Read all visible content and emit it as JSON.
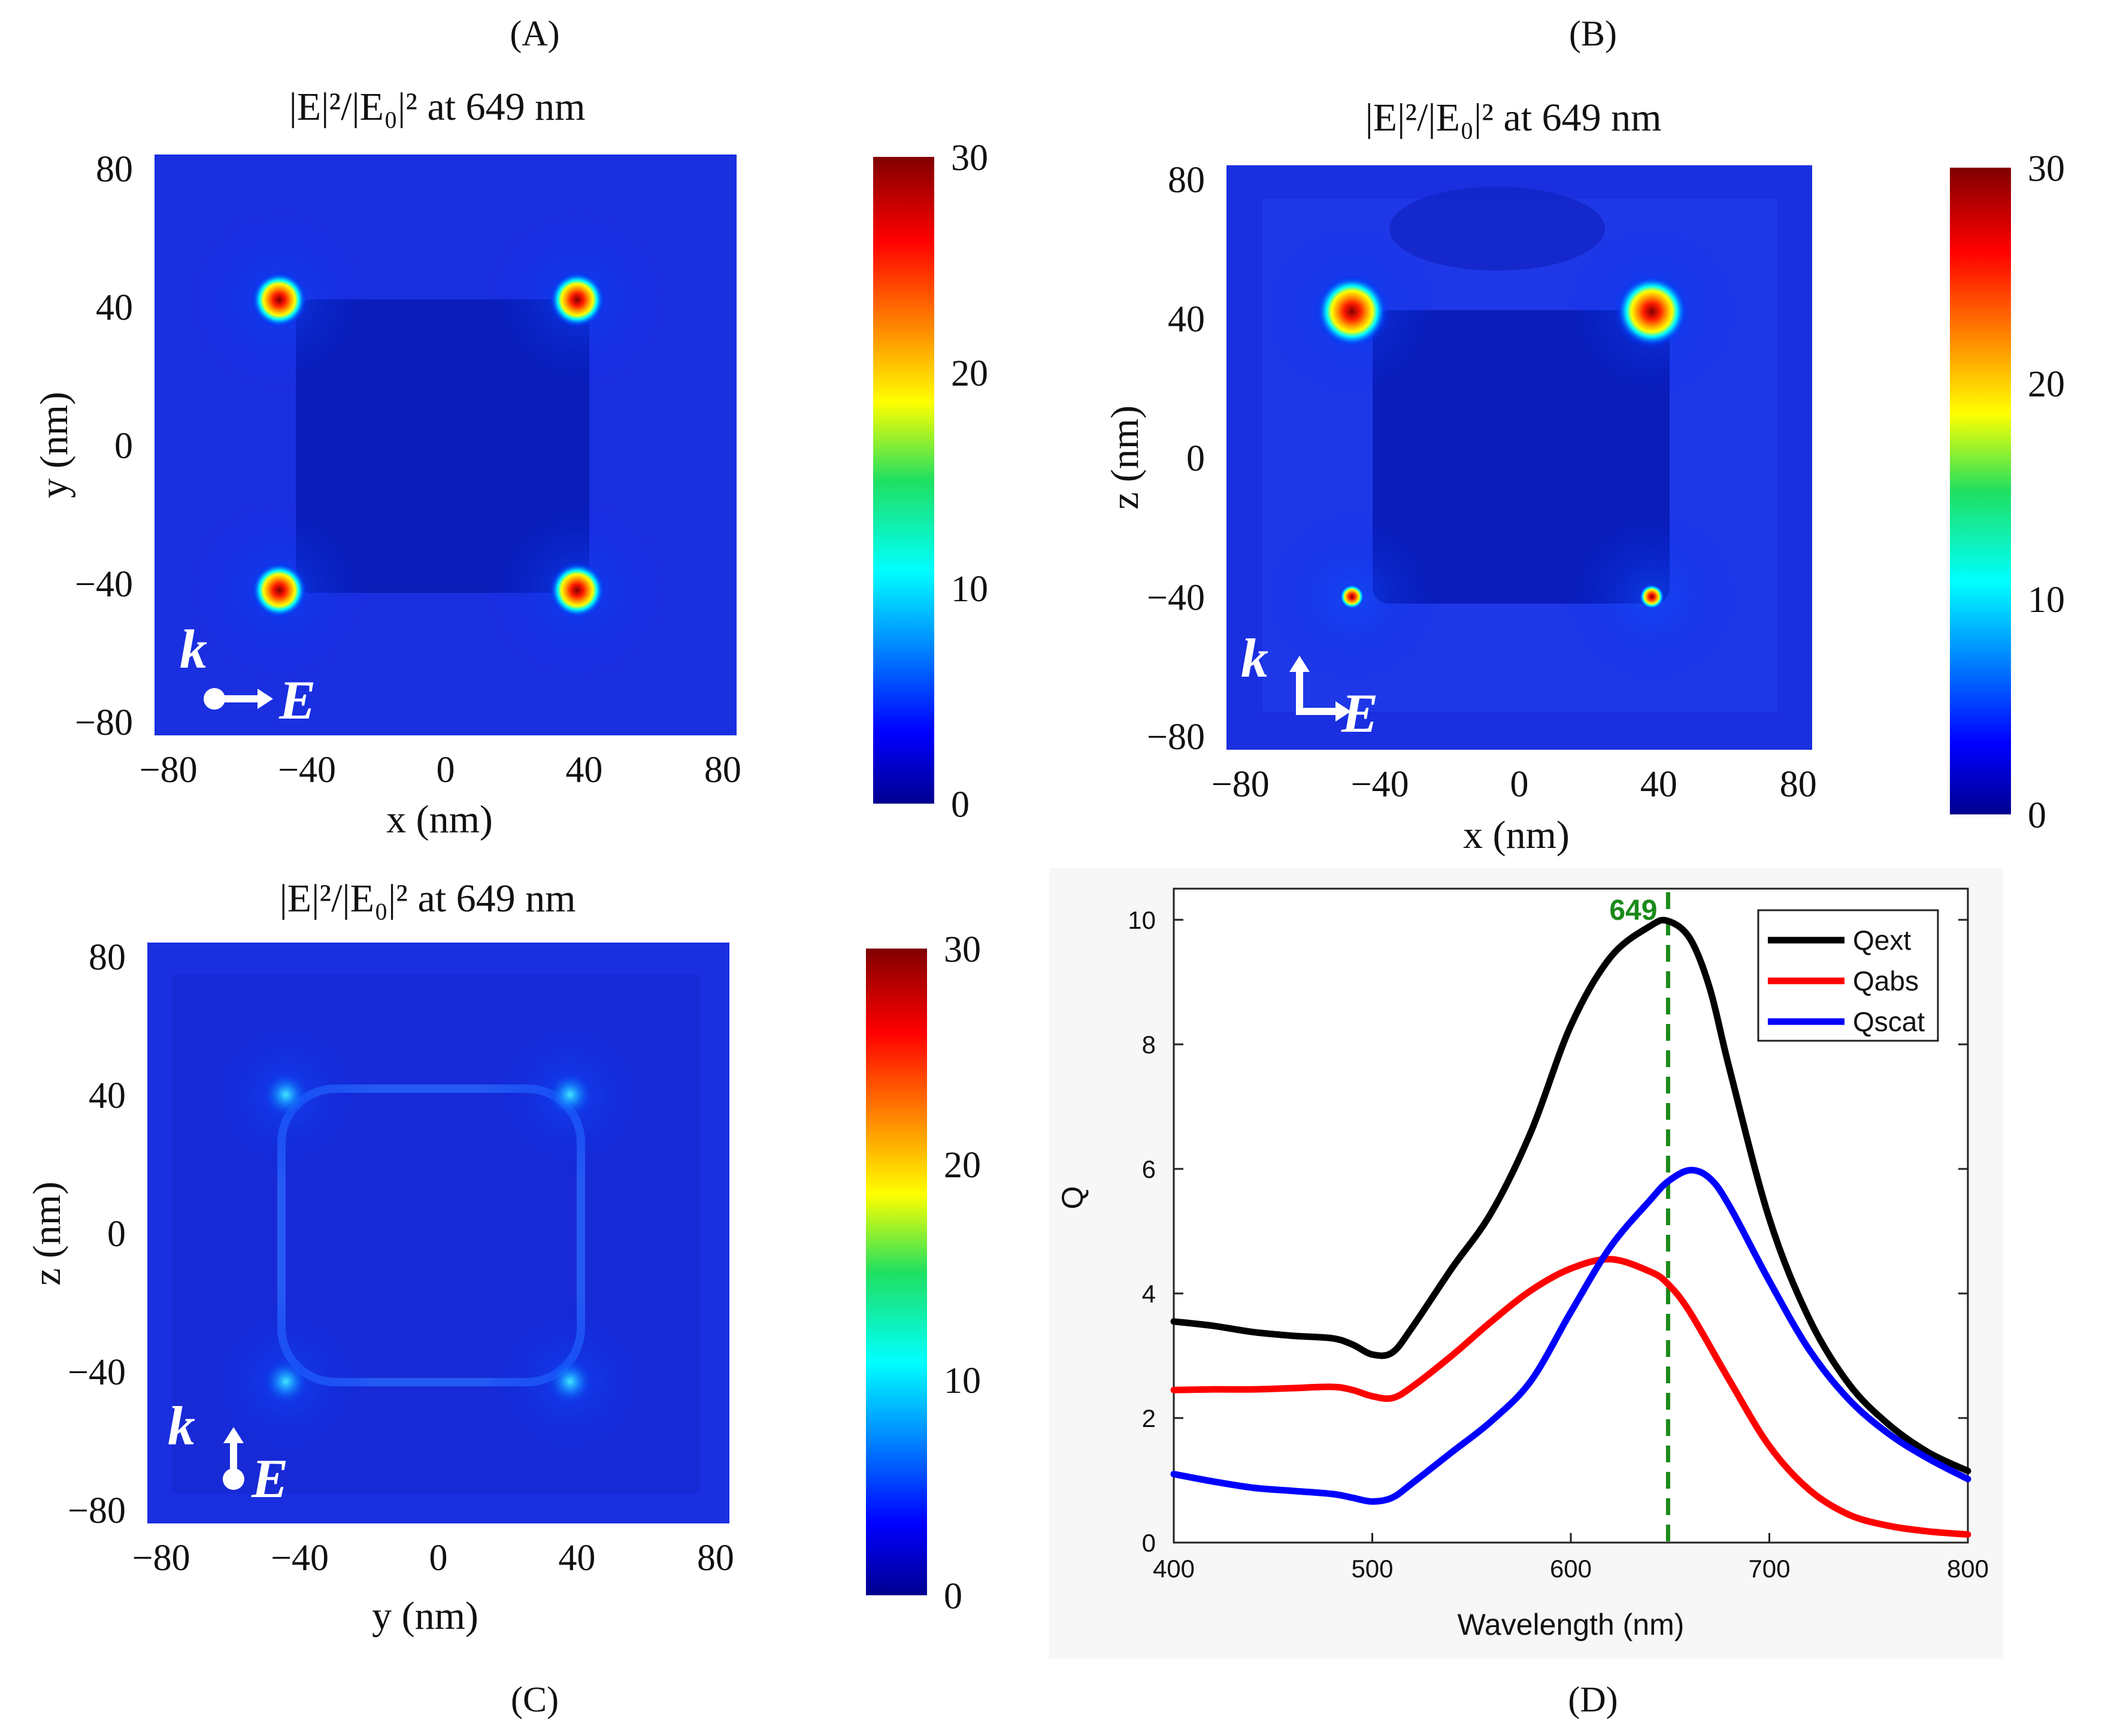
{
  "panel_labels": [
    "(A)",
    "(B)",
    "(C)",
    "(D)"
  ],
  "field_maps": [
    {
      "panel": "(A)",
      "title": "|E|²/|E₀|² at 649 nm",
      "xlabel": "x (nm)",
      "ylabel": "y (nm)",
      "x_ticks": [
        "−80",
        "−40",
        "0",
        "40",
        "80"
      ],
      "y_ticks": [
        "80",
        "40",
        "0",
        "−40",
        "−80"
      ],
      "colorbar_ticks": [
        "30",
        "20",
        "10",
        "0"
      ],
      "colorbar_range": [
        0,
        30
      ],
      "k_label": "k",
      "e_label": "E",
      "hotspot_intensity": 30,
      "hotspots": [
        [
          -48,
          42
        ],
        [
          38,
          42
        ],
        [
          -48,
          -42
        ],
        [
          38,
          -42
        ]
      ]
    },
    {
      "panel": "(B)",
      "title": "|E|²/|E₀|² at 649 nm",
      "xlabel": "x (nm)",
      "ylabel": "z (nm)",
      "x_ticks": [
        "−80",
        "−40",
        "0",
        "40",
        "80"
      ],
      "y_ticks": [
        "80",
        "40",
        "0",
        "−40",
        "−80"
      ],
      "colorbar_ticks": [
        "30",
        "20",
        "10",
        "0"
      ],
      "colorbar_range": [
        0,
        30
      ],
      "k_label": "k",
      "e_label": "E",
      "hotspot_intensity": 30,
      "hotspots": [
        [
          -48,
          42
        ],
        [
          38,
          42
        ],
        [
          -48,
          -40
        ],
        [
          38,
          -40
        ]
      ]
    },
    {
      "panel": "(C)",
      "title": "|E|²/|E₀|² at 649 nm",
      "xlabel": "y (nm)",
      "ylabel": "z (nm)",
      "x_ticks": [
        "−80",
        "−40",
        "0",
        "40",
        "80"
      ],
      "y_ticks": [
        "80",
        "40",
        "0",
        "−40",
        "−80"
      ],
      "colorbar_ticks": [
        "30",
        "20",
        "10",
        "0"
      ],
      "colorbar_range": [
        0,
        30
      ],
      "k_label": "k",
      "e_label": "E",
      "hotspot_intensity": 10,
      "hotspots": [
        [
          -44,
          40
        ],
        [
          38,
          40
        ],
        [
          -44,
          -43
        ],
        [
          38,
          -43
        ]
      ]
    }
  ],
  "chart_data": {
    "type": "line",
    "title": "",
    "xlabel": "Wavelength (nm)",
    "ylabel": "Q",
    "xlim": [
      400,
      800
    ],
    "ylim": [
      0,
      10.5
    ],
    "x_ticks": [
      400,
      500,
      600,
      700,
      800
    ],
    "y_ticks": [
      0,
      2,
      4,
      6,
      8,
      10
    ],
    "legend_position": "top-right",
    "marker_line": {
      "x": 649,
      "label": "649",
      "color": "#1a8a1a",
      "style": "dashed"
    },
    "series": [
      {
        "name": "Qext",
        "color": "#000000",
        "x": [
          400,
          420,
          440,
          460,
          480,
          490,
          500,
          510,
          520,
          540,
          560,
          580,
          600,
          620,
          640,
          649,
          660,
          670,
          680,
          700,
          720,
          740,
          760,
          780,
          800
        ],
        "values": [
          3.55,
          3.48,
          3.38,
          3.32,
          3.28,
          3.18,
          3.02,
          3.05,
          3.45,
          4.4,
          5.3,
          6.6,
          8.3,
          9.4,
          9.9,
          9.98,
          9.7,
          8.9,
          7.6,
          5.2,
          3.6,
          2.55,
          1.9,
          1.45,
          1.15
        ]
      },
      {
        "name": "Qabs",
        "color": "#ff0000",
        "x": [
          400,
          420,
          440,
          460,
          480,
          490,
          500,
          510,
          520,
          540,
          560,
          580,
          600,
          620,
          640,
          649,
          660,
          680,
          700,
          720,
          740,
          760,
          780,
          800
        ],
        "values": [
          2.45,
          2.46,
          2.46,
          2.48,
          2.5,
          2.45,
          2.35,
          2.32,
          2.5,
          3.0,
          3.55,
          4.05,
          4.4,
          4.55,
          4.35,
          4.15,
          3.7,
          2.6,
          1.55,
          0.85,
          0.45,
          0.27,
          0.18,
          0.13
        ]
      },
      {
        "name": "Qscat",
        "color": "#0000ff",
        "x": [
          400,
          420,
          440,
          460,
          480,
          490,
          500,
          510,
          520,
          540,
          560,
          580,
          600,
          620,
          640,
          649,
          660,
          670,
          680,
          700,
          720,
          740,
          760,
          780,
          800
        ],
        "values": [
          1.1,
          0.98,
          0.88,
          0.83,
          0.78,
          0.72,
          0.66,
          0.72,
          0.95,
          1.45,
          1.95,
          2.6,
          3.7,
          4.75,
          5.5,
          5.8,
          5.98,
          5.85,
          5.4,
          4.2,
          3.1,
          2.3,
          1.75,
          1.35,
          1.02
        ]
      }
    ]
  }
}
